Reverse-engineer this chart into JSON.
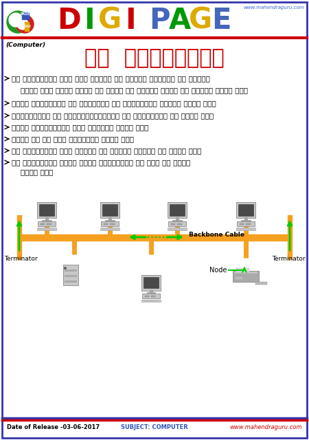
{
  "title_hindi": "बस  टोपोलॉजी",
  "website": "www.mahendraguru.com",
  "subject_label": "(Computer)",
  "footer_date": "Date of Release -03-06-2017",
  "footer_subject": "SUBJECT: COMPUTER",
  "footer_website": "www.mahendraguru.com",
  "bullet_points": [
    "बस टोपोलॉजी में सभी नोड्स एक सिंगल बैकबोन से जुड़े",
    "होते हैं इसका अर्थ ये नहीं की सिंगल केबल से जुड़े होते हैं",
    "अन्य टोपोलॉजी की अपेक्षा बस टोपोलॉजी सस्ता होता हैं",
    "रिसोर्सेस और इंफास्ट्रक्चर की आवश्यकता कम होती हैं",
    "छोटे नेटवर्क्स में उपयोगी होते हैं",
    "केबल का एक छोर टर्मिनल होता हैं",
    "इस टोपोलॉजी में आसानी से नोड्स जोड़े जा सकते हैं",
    "बस टोपोलॉजी सबसे धीमी टोपोलॉजी के तौर भी जाना",
    "जाता हैं"
  ],
  "backbone_color": "#F5A020",
  "arrow_color": "#00CC00",
  "terminator_label": "Terminator",
  "node_label": "Node",
  "backbone_label": "Backbone Cable",
  "bg_color": "#FFFFFF",
  "border_color": "#3333AA",
  "red_line_color": "#CC0000",
  "digi_letters": [
    "D",
    "I",
    "G",
    "I",
    " ",
    "P",
    "A",
    "G",
    "E"
  ],
  "digi_colors": [
    "#CC0000",
    "#009900",
    "#DDAA00",
    "#CC0000",
    "#FFFFFF",
    "#4466BB",
    "#009900",
    "#DDAA00",
    "#4466BB"
  ],
  "header_bg": "#FFFFFF",
  "comp_color": "#888888",
  "monitor_dark": "#555555",
  "monitor_body": "#AAAAAA",
  "monitor_base": "#BBBBBB"
}
